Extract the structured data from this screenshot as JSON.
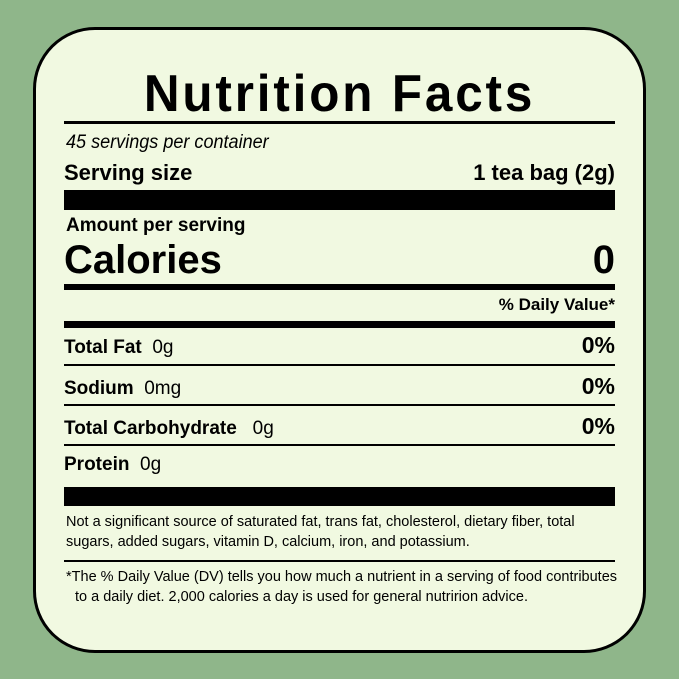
{
  "title": "Nutrition Facts",
  "servings_per_container": "45 servings per container",
  "serving_size": {
    "label": "Serving size",
    "value": "1 tea bag (2g)"
  },
  "amount_per_serving": "Amount per serving",
  "calories": {
    "label": "Calories",
    "value": "0"
  },
  "daily_value_header": "% Daily Value*",
  "nutrients": [
    {
      "name": "Total Fat",
      "amount": "0g",
      "dv": "0%"
    },
    {
      "name": "Sodium",
      "amount": "0mg",
      "dv": "0%"
    },
    {
      "name": "Total Carbohydrate",
      "amount": "0g",
      "dv": "0%"
    },
    {
      "name": "Protein",
      "amount": "0g",
      "dv": ""
    }
  ],
  "not_significant": "Not a significant source of saturated fat, trans fat, cholesterol, dietary fiber, total sugars, added sugars, vitamin D, calcium, iron, and potassium.",
  "footnote_mark": "*",
  "footnote": "The % Daily Value (DV) tells you how much a nutrient in a serving of food contributes to a daily diet. 2,000 calories a day is used for general nutririon advice.",
  "colors": {
    "background": "#8fb68a",
    "label": "#f1f9e1"
  }
}
